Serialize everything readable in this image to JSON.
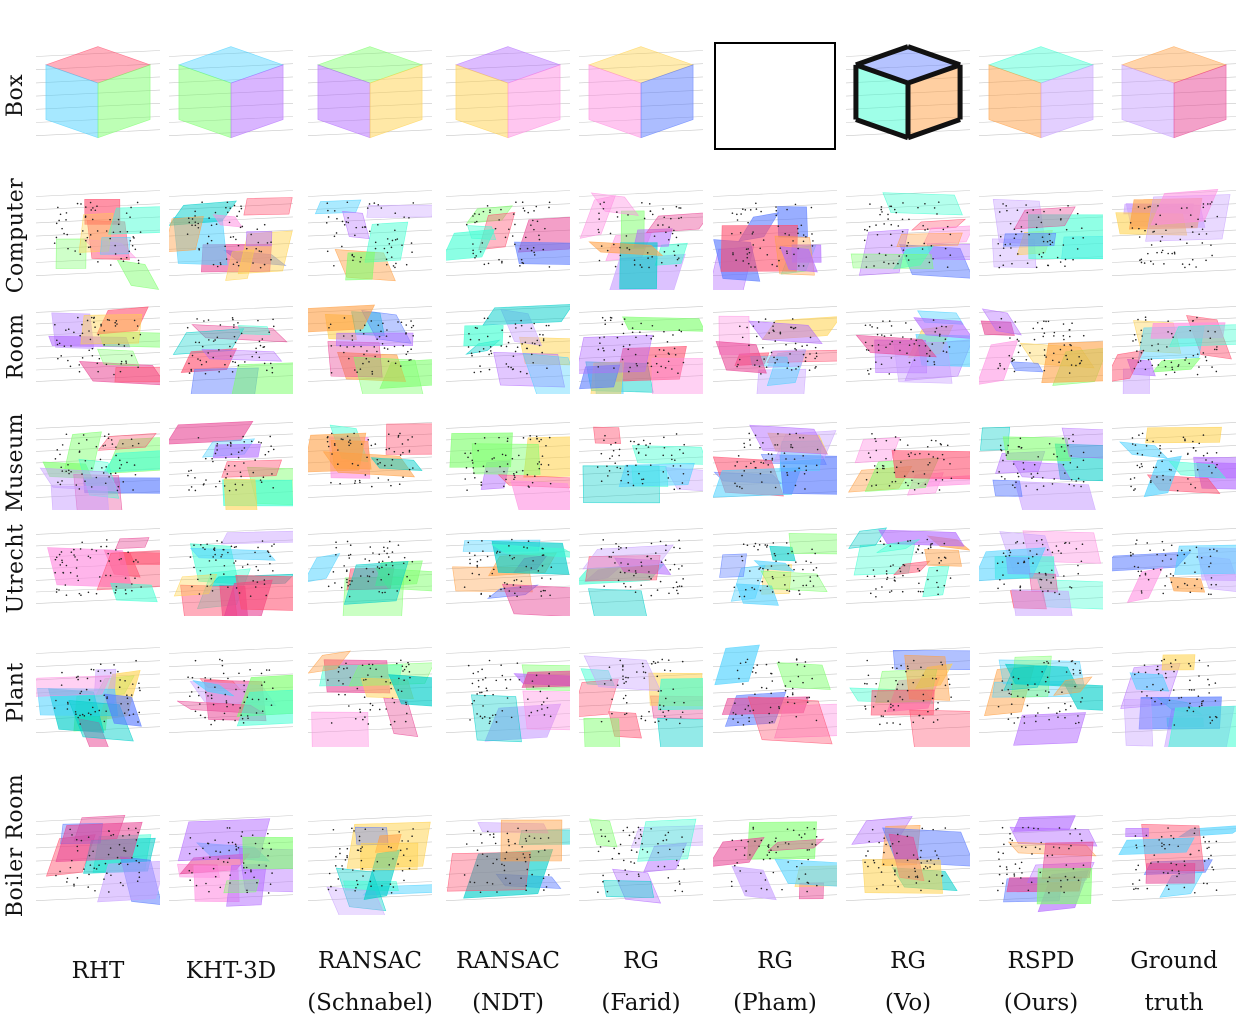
{
  "rows": [
    {
      "label": "Box"
    },
    {
      "label": "Computer"
    },
    {
      "label": "Room"
    },
    {
      "label": "Museum"
    },
    {
      "label": "Utrecht"
    },
    {
      "label": "Plant"
    },
    {
      "label": "Boiler Room"
    }
  ],
  "columns": [
    {
      "line1": "RHT",
      "line2": ""
    },
    {
      "line1": "KHT-3D",
      "line2": ""
    },
    {
      "line1": "RANSAC",
      "line2": "(Schnabel)"
    },
    {
      "line1": "RANSAC",
      "line2": "(NDT)"
    },
    {
      "line1": "RG",
      "line2": "(Farid)"
    },
    {
      "line1": "RG",
      "line2": "(Pham)"
    },
    {
      "line1": "RG",
      "line2": "(Vo)"
    },
    {
      "line1": "RSPD",
      "line2": "(Ours)"
    },
    {
      "line1": "Ground",
      "line2": "truth"
    }
  ],
  "colors": {
    "palette": [
      "#ff4d6d",
      "#4dd2ff",
      "#7cff6b",
      "#b36bff",
      "#ffd24d",
      "#ff8de1",
      "#5a7bff",
      "#3fffd2",
      "#ff9f43",
      "#c8a0ff",
      "#e84393",
      "#00cec9"
    ],
    "points": "#222222",
    "grid": "#c8c8c8"
  },
  "missing_result": {
    "row": 0,
    "col": 5
  }
}
